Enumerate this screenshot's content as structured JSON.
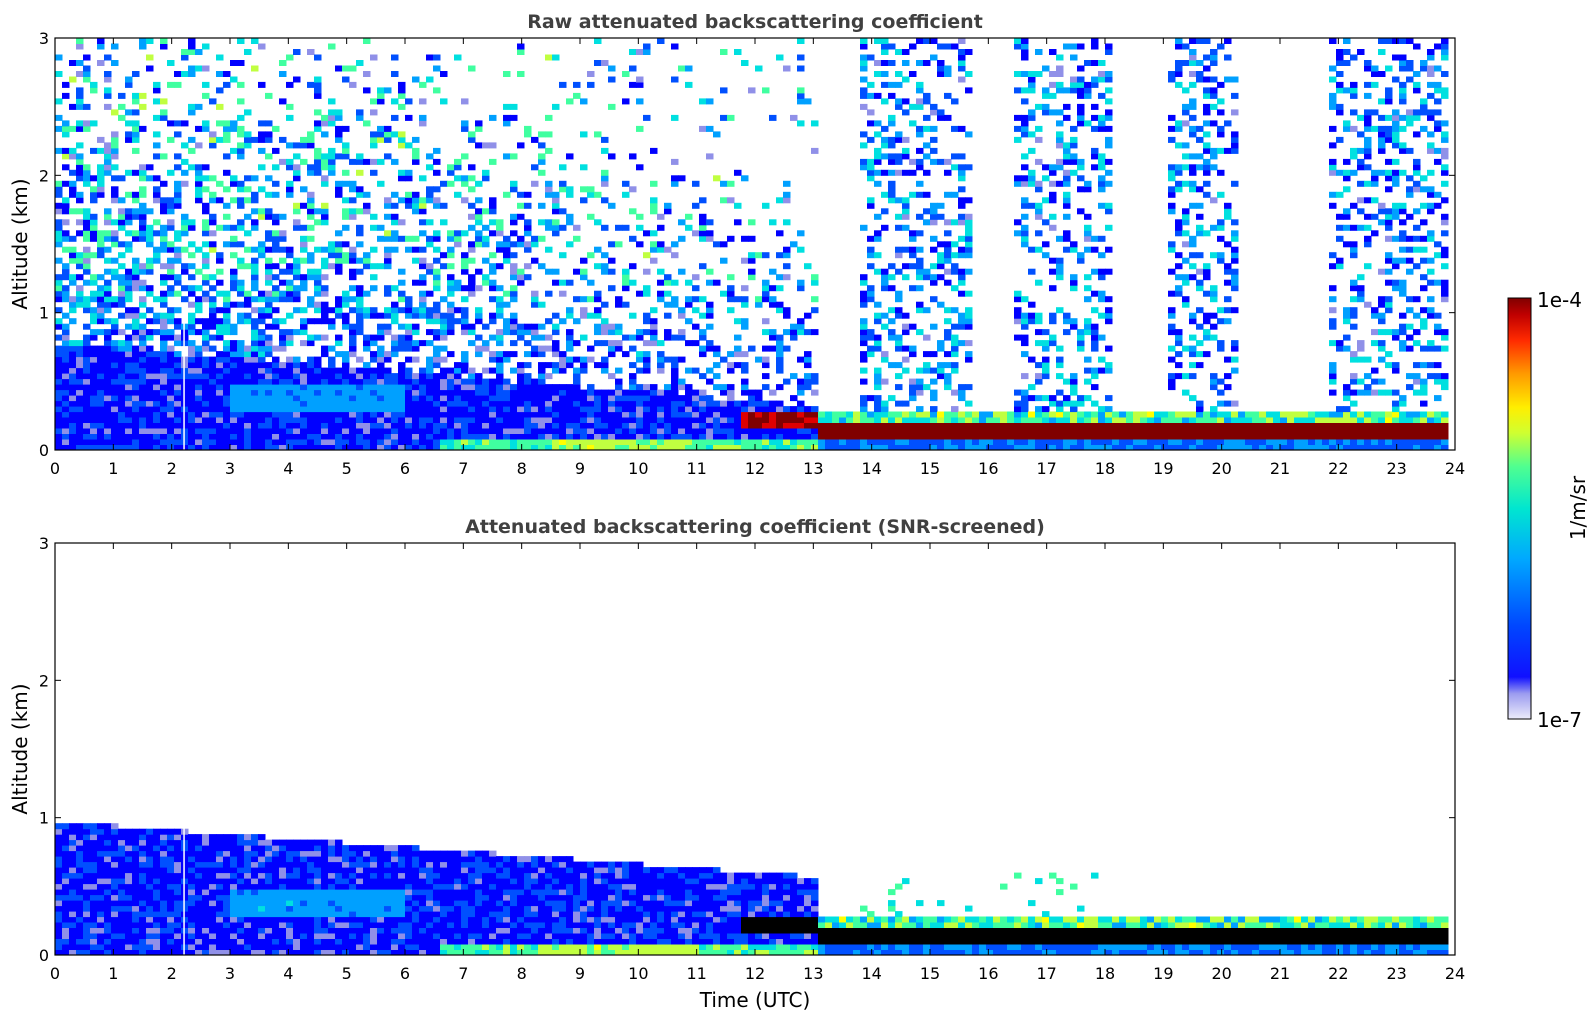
{
  "chart_data": [
    {
      "type": "heatmap",
      "title": "Raw attenuated backscattering coefficient",
      "xlabel": "",
      "ylabel": "Altitude (km)",
      "xlim": [
        0,
        24
      ],
      "ylim": [
        0,
        3
      ],
      "x_ticks": [
        "0",
        "1",
        "2",
        "3",
        "4",
        "5",
        "6",
        "7",
        "8",
        "9",
        "10",
        "11",
        "12",
        "13",
        "14",
        "15",
        "16",
        "17",
        "18",
        "19",
        "20",
        "21",
        "22",
        "23",
        "24"
      ],
      "y_ticks": [
        "0",
        "1",
        "2",
        "3"
      ],
      "screened": false,
      "layers": [
        {
          "name": "boundary-layer aerosol",
          "x_range": [
            0,
            13
          ],
          "top_km": [
            0.7,
            0.3
          ]
        },
        {
          "name": "fog / low stratus",
          "x_range": [
            13,
            23.8
          ],
          "base_km": 0.05,
          "top_km": 0.25
        },
        {
          "name": "cloud patches",
          "x_range": [
            11.7,
            13
          ],
          "altitude_km": 0.22
        }
      ],
      "data_gaps_utc": [
        [
          13.0,
          13.7
        ],
        [
          15.6,
          16.4
        ],
        [
          18.1,
          19.0
        ],
        [
          20.2,
          21.8
        ]
      ]
    },
    {
      "type": "heatmap",
      "title": "Attenuated backscattering coefficient (SNR-screened)",
      "xlabel": "Time (UTC)",
      "ylabel": "Altitude (km)",
      "xlim": [
        0,
        24
      ],
      "ylim": [
        0,
        3
      ],
      "x_ticks": [
        "0",
        "1",
        "2",
        "3",
        "4",
        "5",
        "6",
        "7",
        "8",
        "9",
        "10",
        "11",
        "12",
        "13",
        "14",
        "15",
        "16",
        "17",
        "18",
        "19",
        "20",
        "21",
        "22",
        "23",
        "24"
      ],
      "y_ticks": [
        "0",
        "1",
        "2",
        "3"
      ],
      "screened": true,
      "layers": [
        {
          "name": "boundary-layer aerosol",
          "x_range": [
            0,
            13
          ],
          "top_km": [
            0.95,
            0.55
          ]
        },
        {
          "name": "fog / low stratus",
          "x_range": [
            13,
            23.8
          ],
          "base_km": 0.05,
          "top_km": 0.25
        },
        {
          "name": "cloud patches",
          "x_range": [
            11.7,
            13
          ],
          "altitude_km": 0.22
        }
      ]
    }
  ],
  "colorbar": {
    "label": "1/m/sr",
    "max_label": "1e-4",
    "min_label": "1e-7",
    "scale": "log",
    "range": [
      1e-07,
      0.0001
    ],
    "colormap": [
      "#e8e8f8",
      "#c8c8f0",
      "#9090e8",
      "#0000ff",
      "#0050ff",
      "#00a0ff",
      "#00e0e0",
      "#40ffa0",
      "#c0ff40",
      "#ffff00",
      "#ffa000",
      "#ff4000",
      "#e00000",
      "#800000"
    ]
  }
}
